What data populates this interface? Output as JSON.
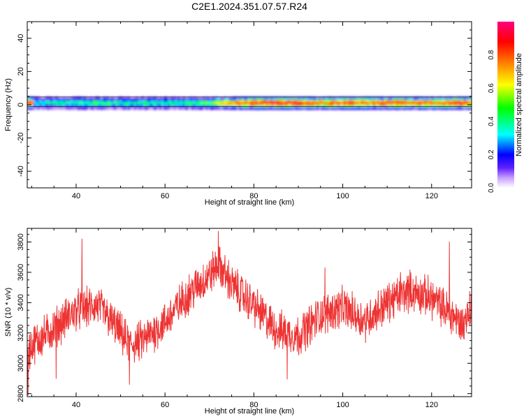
{
  "title": "C2E1.2024.351.07.57.R24",
  "chart_data": [
    {
      "type": "heatmap",
      "xlabel": "Height of straight line (km)",
      "ylabel": "Frequency (Hz)",
      "xlim": [
        29,
        129
      ],
      "ylim": [
        -50,
        50
      ],
      "xticks": [
        40,
        60,
        80,
        100,
        120
      ],
      "yticks": [
        40,
        20,
        0,
        -20,
        -40
      ],
      "ytick_labels": [
        "40",
        "20",
        "0",
        "-20",
        "-40"
      ],
      "band_center_hz": 1.0,
      "band_half_width_hz": 3.5,
      "colorbar": {
        "label": "Normalized spectral amplitude",
        "range": [
          0.0,
          1.0
        ],
        "ticks": [
          "0.0",
          "0.2",
          "0.4",
          "0.6",
          "0.8"
        ],
        "colormap": "rainbow",
        "colors": [
          "#ffffff",
          "#c8a0ff",
          "#6020ff",
          "#0000ff",
          "#00ffff",
          "#00ff00",
          "#ffff00",
          "#ff8000",
          "#ff0000",
          "#ff0080"
        ]
      },
      "amplitude_profile": [
        {
          "x": 30,
          "peak": 0.45
        },
        {
          "x": 35,
          "peak": 0.5
        },
        {
          "x": 40,
          "peak": 0.52
        },
        {
          "x": 45,
          "peak": 0.55
        },
        {
          "x": 50,
          "peak": 0.5
        },
        {
          "x": 55,
          "peak": 0.52
        },
        {
          "x": 60,
          "peak": 0.48
        },
        {
          "x": 65,
          "peak": 0.52
        },
        {
          "x": 70,
          "peak": 0.6
        },
        {
          "x": 75,
          "peak": 0.78
        },
        {
          "x": 80,
          "peak": 0.88
        },
        {
          "x": 85,
          "peak": 0.9
        },
        {
          "x": 90,
          "peak": 0.9
        },
        {
          "x": 95,
          "peak": 0.8
        },
        {
          "x": 100,
          "peak": 0.88
        },
        {
          "x": 105,
          "peak": 0.82
        },
        {
          "x": 110,
          "peak": 0.86
        },
        {
          "x": 115,
          "peak": 0.84
        },
        {
          "x": 120,
          "peak": 0.82
        },
        {
          "x": 125,
          "peak": 0.85
        },
        {
          "x": 129,
          "peak": 0.86
        }
      ]
    },
    {
      "type": "line",
      "xlabel": "Height of straight line (km)",
      "ylabel": "SNR (10 * v/v)",
      "xlim": [
        29,
        129
      ],
      "ylim": [
        2780,
        3890
      ],
      "xticks": [
        40,
        60,
        80,
        100,
        120
      ],
      "yticks": [
        2800,
        3000,
        3200,
        3400,
        3600,
        3800
      ],
      "series": [
        {
          "color": "#ee3333",
          "trend_x": [
            29,
            30,
            35,
            40,
            45,
            50,
            52,
            55,
            60,
            65,
            70,
            72,
            75,
            80,
            85,
            90,
            95,
            100,
            105,
            110,
            115,
            120,
            125,
            127,
            129
          ],
          "trend_y": [
            3050,
            3120,
            3230,
            3350,
            3380,
            3200,
            3120,
            3150,
            3270,
            3450,
            3580,
            3650,
            3520,
            3380,
            3220,
            3180,
            3320,
            3370,
            3280,
            3400,
            3480,
            3430,
            3310,
            3250,
            3380
          ],
          "noise_amplitude": 110,
          "spikes": [
            {
              "x": 41.3,
              "y": 3820
            },
            {
              "x": 72.0,
              "y": 3870
            },
            {
              "x": 124.0,
              "y": 3800
            },
            {
              "x": 87.5,
              "y": 2895
            },
            {
              "x": 52.0,
              "y": 2860
            },
            {
              "x": 29.2,
              "y": 2790
            },
            {
              "x": 35.5,
              "y": 2900
            },
            {
              "x": 96.0,
              "y": 3630
            },
            {
              "x": 113.0,
              "y": 3600
            }
          ]
        }
      ]
    }
  ]
}
